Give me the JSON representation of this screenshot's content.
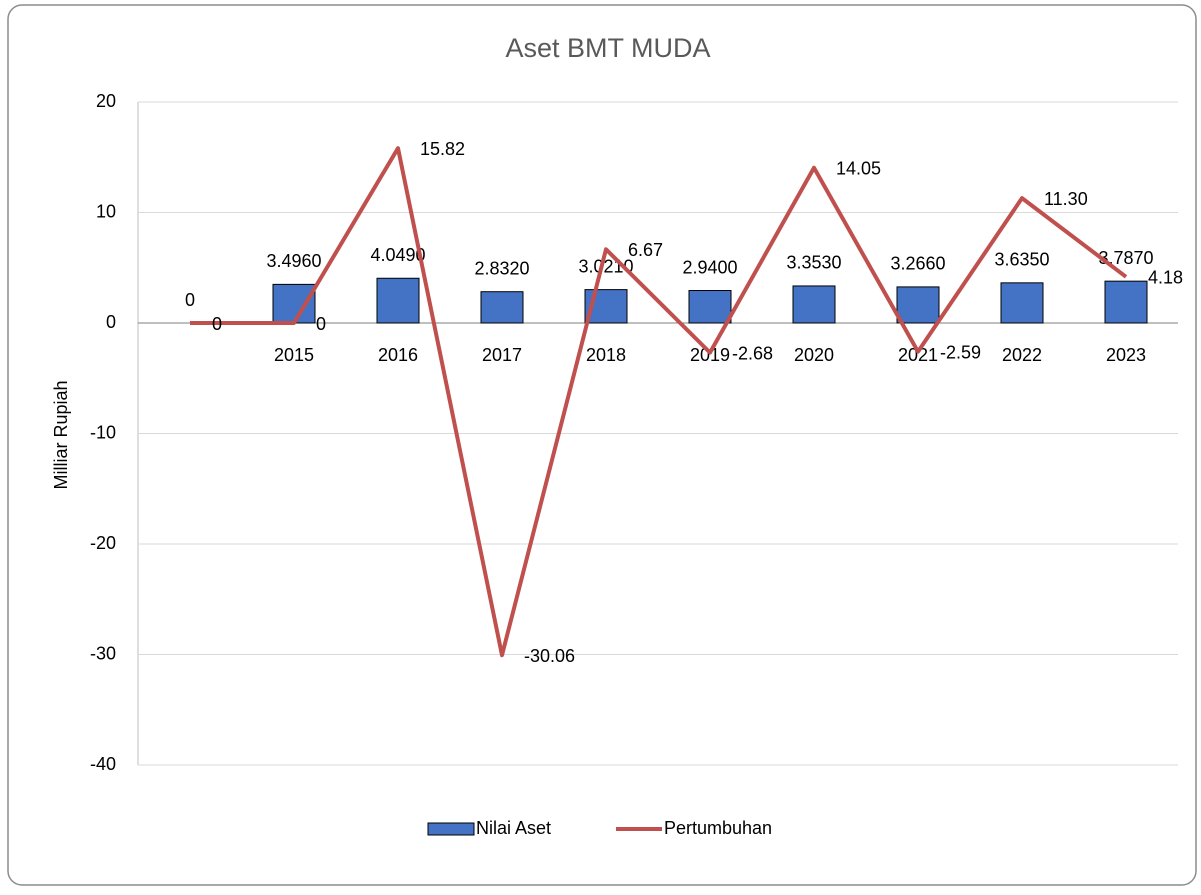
{
  "chart_data": {
    "type": "bar-line",
    "title": "Aset BMT MUDA",
    "y_label": "Milliar Rupiah",
    "categories": [
      null,
      "2015",
      "2016",
      "2017",
      "2018",
      "2019",
      "2020",
      "2021",
      "2022",
      "2023"
    ],
    "series": [
      {
        "name": "Nilai Aset",
        "type": "bar",
        "color": "#4472c4",
        "values": [
          0,
          3.496,
          4.049,
          2.832,
          3.021,
          2.94,
          3.353,
          3.266,
          3.635,
          3.787
        ],
        "value_labels": [
          "0",
          "3.4960",
          "4.0490",
          "2.8320",
          "3.0210",
          "2.9400",
          "3.3530",
          "3.2660",
          "3.6350",
          "3.7870"
        ]
      },
      {
        "name": "Pertumbuhan",
        "type": "line",
        "color": "#c0504d",
        "values": [
          0,
          0,
          15.82,
          -30.06,
          6.67,
          -2.68,
          14.05,
          -2.59,
          11.3,
          4.18
        ],
        "value_labels": [
          "0",
          "0",
          "15.82",
          "-30.06",
          "6.67",
          "-2.68",
          "14.05",
          "-2.59",
          "11.30",
          "4.18"
        ]
      }
    ],
    "ylim": [
      -40,
      20
    ],
    "yticks": [
      -40,
      -30,
      -20,
      -10,
      0,
      10,
      20
    ],
    "grid": true,
    "legend": "bottom"
  }
}
